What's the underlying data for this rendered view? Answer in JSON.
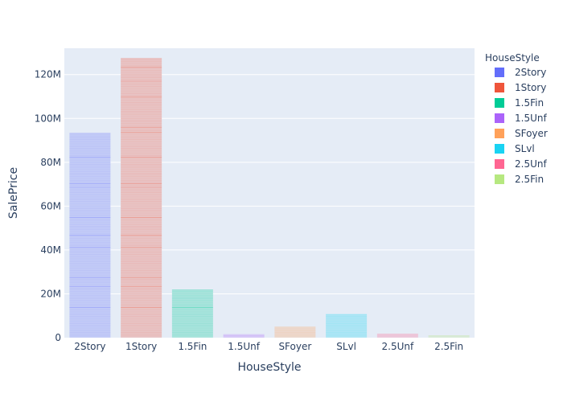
{
  "chart_data": {
    "type": "bar",
    "title": "",
    "xlabel": "HouseStyle",
    "ylabel": "SalePrice",
    "ylim": [
      0,
      132000000
    ],
    "y_ticks": [
      {
        "value": 0,
        "label": "0"
      },
      {
        "value": 20000000,
        "label": "20M"
      },
      {
        "value": 40000000,
        "label": "40M"
      },
      {
        "value": 60000000,
        "label": "60M"
      },
      {
        "value": 80000000,
        "label": "80M"
      },
      {
        "value": 100000000,
        "label": "100M"
      },
      {
        "value": 120000000,
        "label": "120M"
      }
    ],
    "categories": [
      "2Story",
      "1Story",
      "1.5Fin",
      "1.5Unf",
      "SFoyer",
      "SLvl",
      "2.5Unf",
      "2.5Fin"
    ],
    "values": [
      93500000,
      127500000,
      22000000,
      1600000,
      5000000,
      10800000,
      1800000,
      1100000
    ],
    "colors": [
      "#636efa",
      "#EF553B",
      "#00cc96",
      "#ab63fa",
      "#FFA15A",
      "#19d3f3",
      "#FF6692",
      "#B6E880"
    ],
    "stack_opacity": 0.25,
    "grid": true,
    "background": "#E5ECF6",
    "legend_title": "HouseStyle",
    "legend_position": "right"
  }
}
